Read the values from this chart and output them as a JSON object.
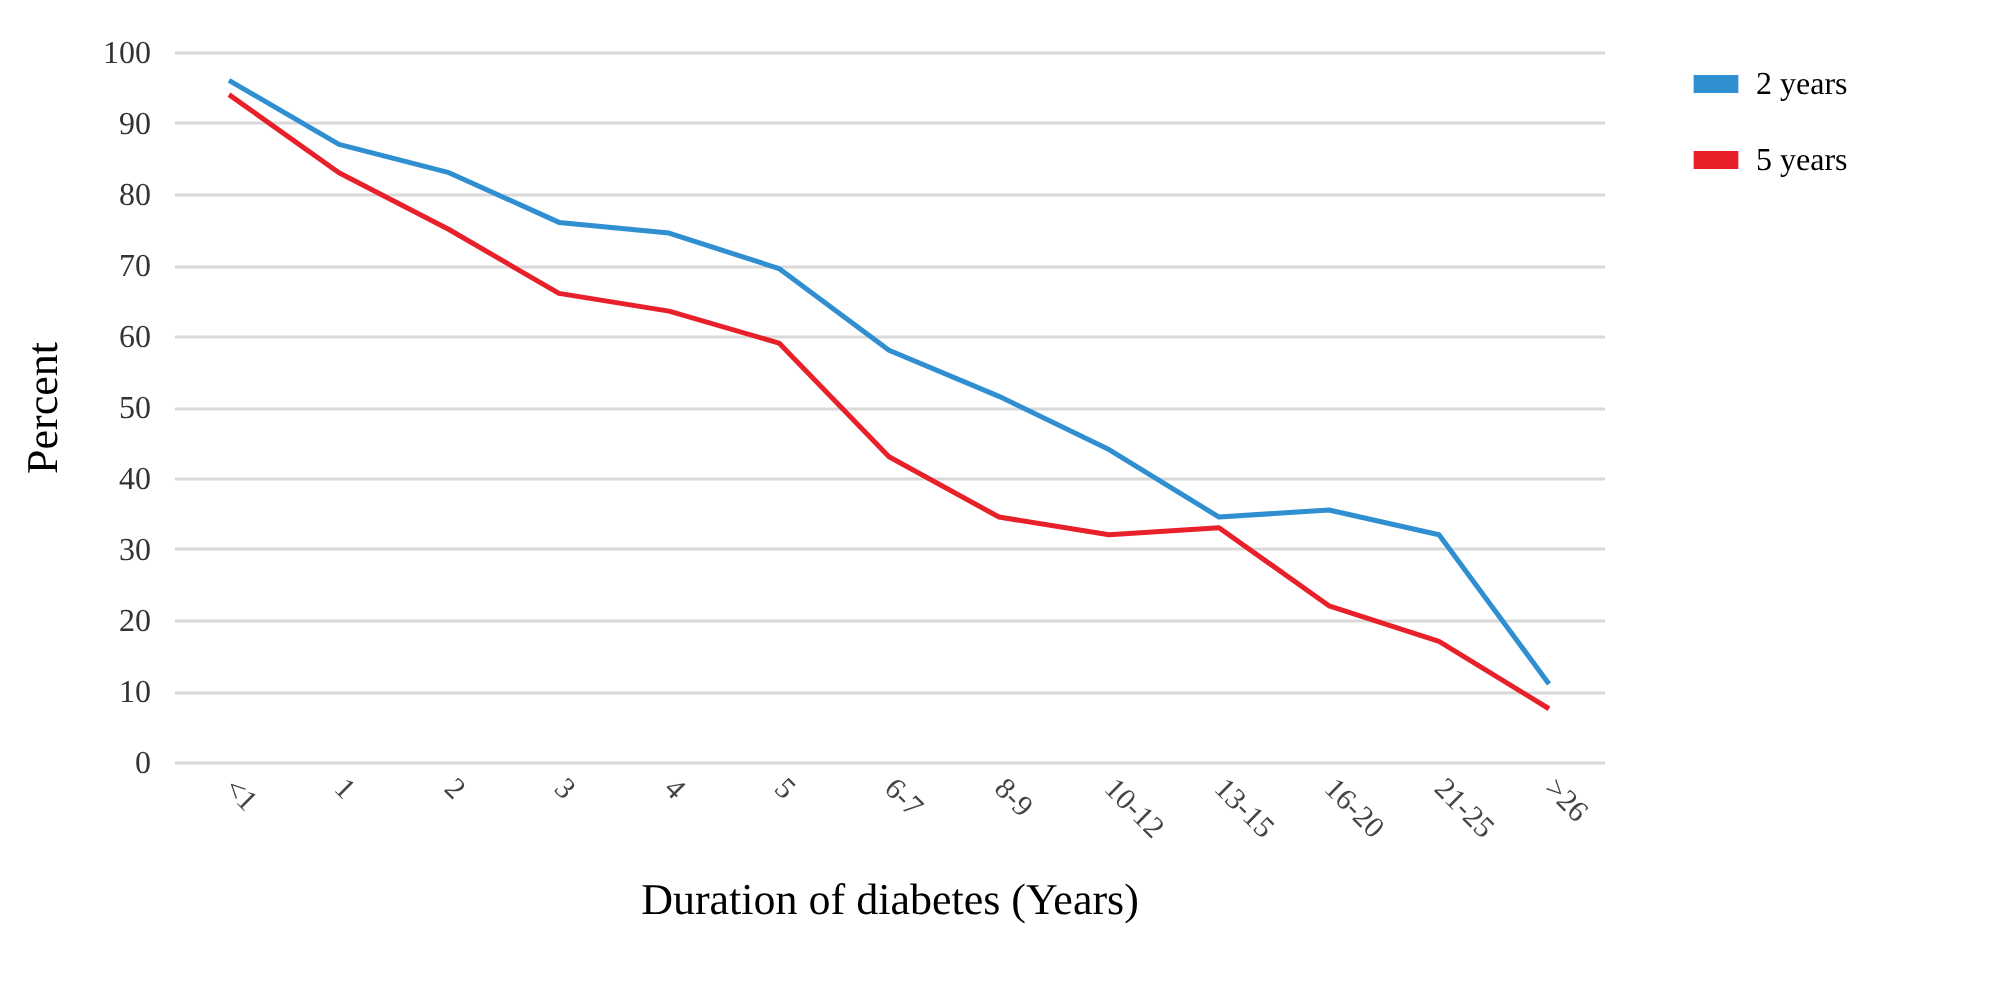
{
  "chart_data": {
    "type": "line",
    "xlabel": "Duration of diabetes (Years)",
    "ylabel": "Percent",
    "categories": [
      "<1",
      "1",
      "2",
      "3",
      "4",
      "5",
      "6-7",
      "8-9",
      "10-12",
      "13-15",
      "16-20",
      "21-25",
      ">26"
    ],
    "series": [
      {
        "name": "2 years",
        "color": "#2f8fd0",
        "values": [
          96,
          87,
          83,
          76,
          74.5,
          69.5,
          58,
          51.5,
          44,
          34.5,
          35.5,
          32,
          11
        ]
      },
      {
        "name": "5 years",
        "color": "#e8202a",
        "values": [
          94,
          83,
          75,
          66,
          63.5,
          59,
          43,
          34.5,
          32,
          33,
          22,
          17,
          7.5
        ]
      }
    ],
    "ylim": [
      0,
      100
    ],
    "yticks": [
      0,
      10,
      20,
      30,
      40,
      50,
      60,
      70,
      80,
      90,
      100
    ],
    "grid": "y",
    "legend": "top right",
    "marker": "none",
    "line_style": "solid"
  }
}
